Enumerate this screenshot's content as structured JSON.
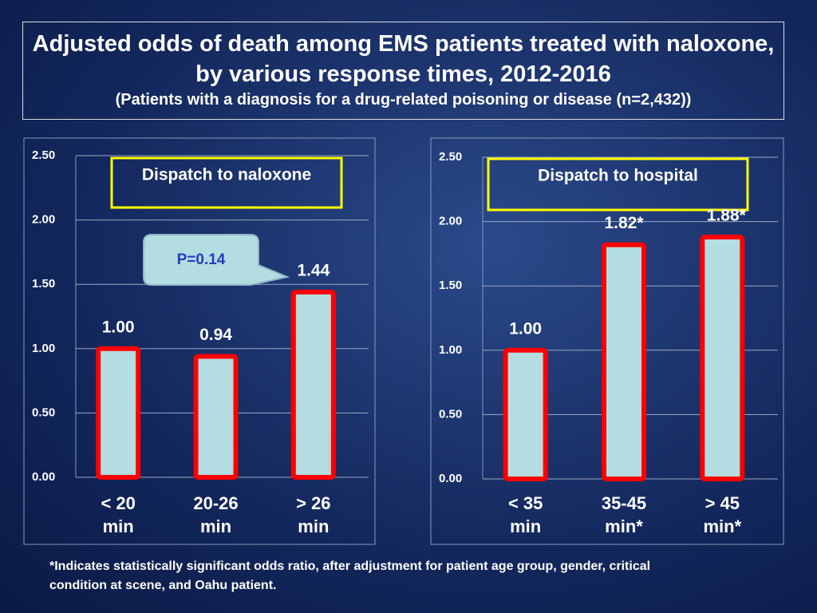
{
  "header": {
    "title": "Adjusted odds of death among EMS patients treated with naloxone, by various response times, 2012-2016",
    "subtitle": "(Patients with a diagnosis for a drug-related poisoning or disease (n=2,432))"
  },
  "chart_data": [
    {
      "type": "bar",
      "title": "Dispatch to naloxone",
      "annotation": "P=0.14",
      "categories": [
        "< 20 min",
        "20-26 min",
        "> 26 min"
      ],
      "values": [
        1.0,
        0.94,
        1.44
      ],
      "value_labels": [
        "1.00",
        "0.94",
        "1.44"
      ],
      "color": "#b3dde0",
      "edge_color": "#ff0000",
      "ylim": [
        0,
        2.5
      ],
      "yticks": [
        {
          "value": 0,
          "label": "0.00"
        },
        {
          "value": 0.5,
          "label": "0.50"
        },
        {
          "value": 1,
          "label": "1.00"
        },
        {
          "value": 1.5,
          "label": "1.50"
        },
        {
          "value": 2,
          "label": "2.00"
        },
        {
          "value": 2.5,
          "label": "2.50"
        }
      ],
      "grid": true
    },
    {
      "type": "bar",
      "title": "Dispatch to hospital",
      "categories": [
        "< 35 min",
        "35-45 min*",
        "> 45 min*"
      ],
      "values": [
        1.0,
        1.82,
        1.88
      ],
      "value_labels": [
        "1.00",
        "1.82*",
        "1.88*"
      ],
      "color": "#b3dde0",
      "edge_color": "#ff0000",
      "ylim": [
        0,
        2.5
      ],
      "yticks": [
        {
          "value": 0,
          "label": "0.00"
        },
        {
          "value": 0.5,
          "label": "0.50"
        },
        {
          "value": 1,
          "label": "1.00"
        },
        {
          "value": 1.5,
          "label": "1.50"
        },
        {
          "value": 2,
          "label": "2.00"
        },
        {
          "value": 2.5,
          "label": "2.50"
        }
      ],
      "grid": true
    }
  ],
  "footnote": "*Indicates statistically significant odds ratio, after adjustment for patient age group, gender, critical condition at scene, and Oahu patient."
}
